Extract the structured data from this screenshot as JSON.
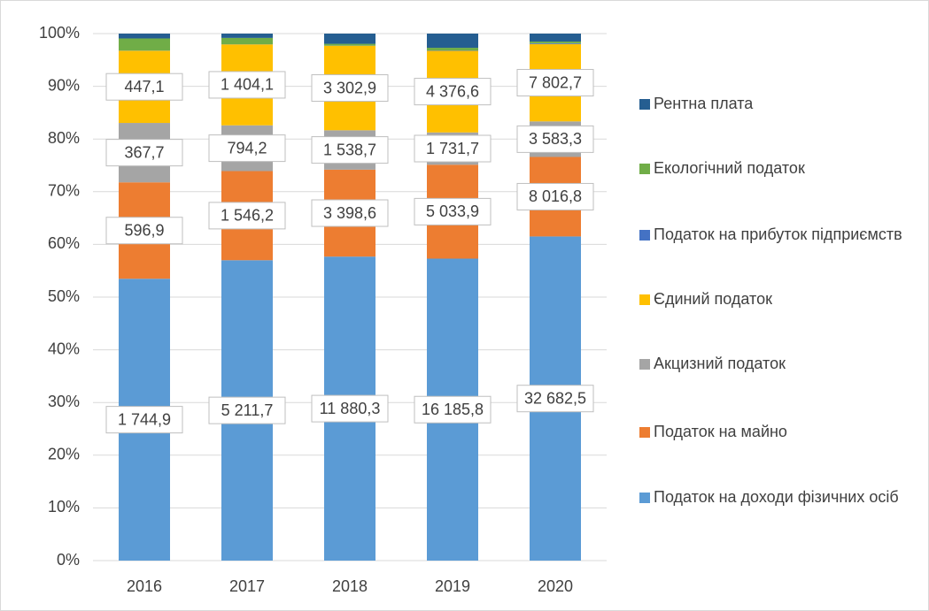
{
  "chart_data": {
    "type": "bar",
    "stacked": "percent",
    "categories": [
      "2016",
      "2017",
      "2018",
      "2019",
      "2020"
    ],
    "ylim": [
      0,
      100
    ],
    "yticks": [
      {
        "value": 0,
        "label": "0%"
      },
      {
        "value": 10,
        "label": "10%"
      },
      {
        "value": 20,
        "label": "20%"
      },
      {
        "value": 30,
        "label": "30%"
      },
      {
        "value": 40,
        "label": "40%"
      },
      {
        "value": 50,
        "label": "50%"
      },
      {
        "value": 60,
        "label": "60%"
      },
      {
        "value": 70,
        "label": "70%"
      },
      {
        "value": 80,
        "label": "80%"
      },
      {
        "value": 90,
        "label": "90%"
      },
      {
        "value": 100,
        "label": "100%"
      }
    ],
    "grid": true,
    "series": [
      {
        "name": "Податок на доходи фізичних осіб",
        "color": "#5b9bd5",
        "values": [
          1744.9,
          5211.7,
          11880.3,
          16185.8,
          32682.5
        ],
        "value_labels": [
          "1 744,9",
          "5 211,7",
          "11 880,3",
          "16 185,8",
          "32 682,5"
        ]
      },
      {
        "name": "Податок на майно",
        "color": "#ed7d31",
        "values": [
          596.9,
          1546.2,
          3398.6,
          5033.9,
          8016.8
        ],
        "value_labels": [
          "596,9",
          "1 546,2",
          "3 398,6",
          "5 033,9",
          "8 016,8"
        ]
      },
      {
        "name": "Акцизний податок",
        "color": "#a5a5a5",
        "values": [
          367.7,
          794.2,
          1538.7,
          1731.7,
          3583.3
        ],
        "value_labels": [
          "367,7",
          "794,2",
          "1 538,7",
          "1 731,7",
          "3 583,3"
        ]
      },
      {
        "name": "Єдиний податок",
        "color": "#ffc000",
        "values": [
          447.1,
          1404.1,
          3302.9,
          4376.6,
          7802.7
        ],
        "value_labels": [
          "447,1",
          "1 404,1",
          "3 302,9",
          "4 376,6",
          "7 802,7"
        ]
      },
      {
        "name": "Податок на прибуток підприємств",
        "color": "#4472c4",
        "values": [
          1,
          2,
          5,
          20,
          80
        ]
      },
      {
        "name": "Екологічний податок",
        "color": "#70ad47",
        "values": [
          75,
          110,
          70,
          140,
          170
        ]
      },
      {
        "name": "Рентна плата",
        "color": "#255e91",
        "values": [
          30,
          75,
          400,
          760,
          800
        ]
      }
    ]
  }
}
